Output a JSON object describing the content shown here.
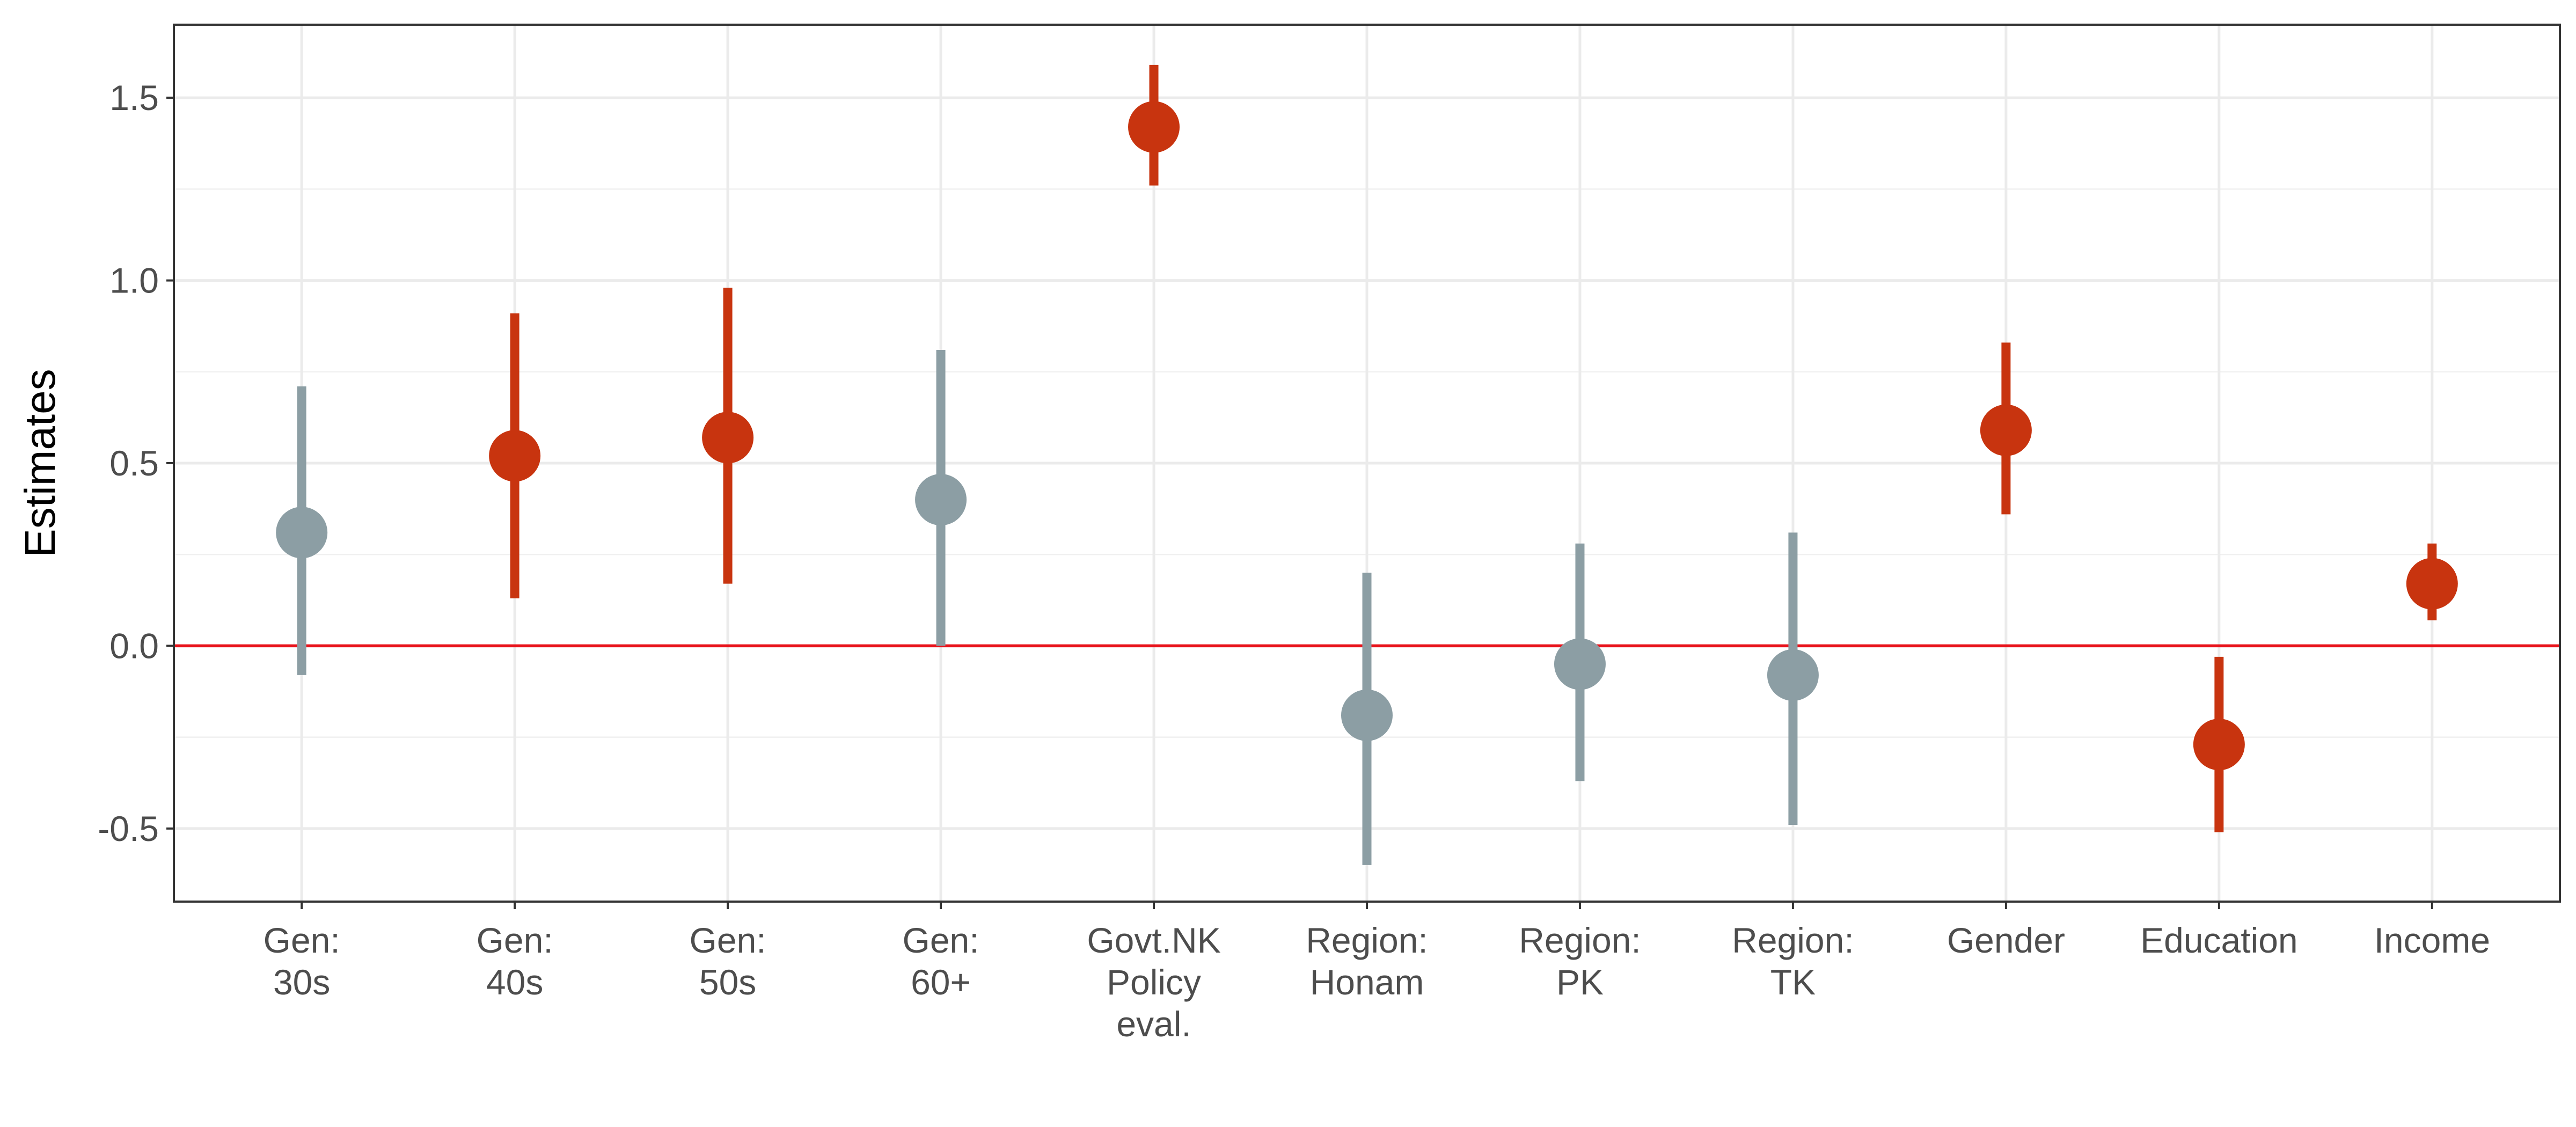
{
  "chart_data": {
    "type": "scatter",
    "subtype": "coefficient-plot",
    "ylabel": "Estimates",
    "xlabel": "",
    "ylim": [
      -0.7,
      1.7
    ],
    "y_ticks": [
      "-0.5",
      "0.0",
      "0.5",
      "1.0",
      "1.5"
    ],
    "grid": true,
    "reference_line": {
      "y": 0.0,
      "color": "#e8131b"
    },
    "colors": {
      "significant": "#c8340f",
      "not_significant": "#8c9ea4"
    },
    "categories": [
      {
        "lines": [
          "Gen:",
          "30s"
        ],
        "estimate": 0.31,
        "low": -0.08,
        "high": 0.71,
        "significant": false
      },
      {
        "lines": [
          "Gen:",
          "40s"
        ],
        "estimate": 0.52,
        "low": 0.13,
        "high": 0.91,
        "significant": true
      },
      {
        "lines": [
          "Gen:",
          "50s"
        ],
        "estimate": 0.57,
        "low": 0.17,
        "high": 0.98,
        "significant": true
      },
      {
        "lines": [
          "Gen:",
          "60+"
        ],
        "estimate": 0.4,
        "low": 0.0,
        "high": 0.81,
        "significant": false
      },
      {
        "lines": [
          "Govt.NK",
          "Policy",
          "eval."
        ],
        "estimate": 1.42,
        "low": 1.26,
        "high": 1.59,
        "significant": true
      },
      {
        "lines": [
          "Region:",
          "Honam"
        ],
        "estimate": -0.19,
        "low": -0.6,
        "high": 0.2,
        "significant": false
      },
      {
        "lines": [
          "Region:",
          "PK"
        ],
        "estimate": -0.05,
        "low": -0.37,
        "high": 0.28,
        "significant": false
      },
      {
        "lines": [
          "Region:",
          "TK"
        ],
        "estimate": -0.08,
        "low": -0.49,
        "high": 0.31,
        "significant": false
      },
      {
        "lines": [
          "Gender"
        ],
        "estimate": 0.59,
        "low": 0.36,
        "high": 0.83,
        "significant": true
      },
      {
        "lines": [
          "Education"
        ],
        "estimate": -0.27,
        "low": -0.51,
        "high": -0.03,
        "significant": true
      },
      {
        "lines": [
          "Income"
        ],
        "estimate": 0.17,
        "low": 0.07,
        "high": 0.28,
        "significant": true
      }
    ]
  }
}
